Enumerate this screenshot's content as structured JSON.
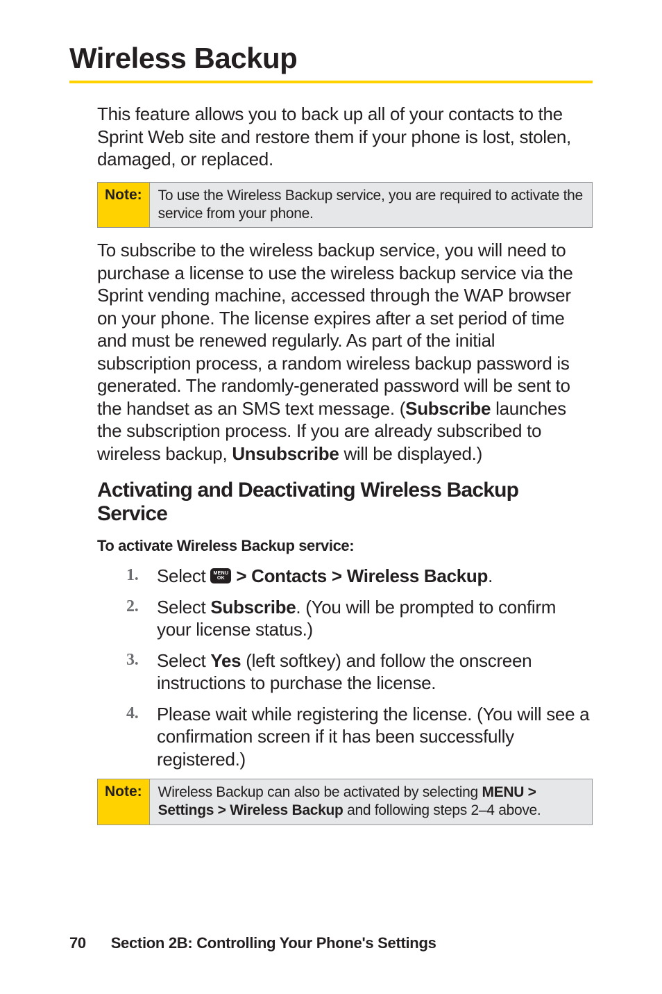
{
  "title": "Wireless Backup",
  "intro": "This feature allows you to back up all of your contacts to the Sprint Web site and restore them if your phone is lost, stolen, damaged, or replaced.",
  "note1": {
    "label": "Note:",
    "text": "To use the Wireless Backup service, you are required to activate the service from your phone."
  },
  "para2_parts": {
    "a": "To subscribe to the wireless backup service, you will need to purchase a license to use the wireless backup service via the Sprint vending machine, accessed through the WAP browser on your phone. The license expires after a set period of time and must be renewed regularly. As part of the initial subscription process, a random wireless backup password is generated. The randomly-generated password will be sent to the handset as an SMS text message. (",
    "b": "Subscribe",
    "c": " launches the subscription process. If you are already subscribed to wireless backup, ",
    "d": "Unsubscribe",
    "e": " will be displayed.)"
  },
  "h2": "Activating and Deactivating Wireless Backup Service",
  "sub": "To activate Wireless Backup service:",
  "steps": [
    {
      "pre": "Select ",
      "bold": " > Contacts > Wireless Backup",
      "post": "."
    },
    {
      "pre": "Select ",
      "bold": "Subscribe",
      "post": ". (You will be prompted to confirm your license status.)"
    },
    {
      "pre": "Select ",
      "bold": "Yes",
      "post": " (left softkey) and follow the onscreen instructions to purchase the license."
    },
    {
      "pre": "Please wait while registering the license. (You will see a confirmation screen if it has been successfully registered.)",
      "bold": "",
      "post": ""
    }
  ],
  "note2": {
    "label": "Note:",
    "a": "Wireless Backup can also be activated by selecting ",
    "b": "MENU > Settings > Wireless Backup",
    "c": " and following steps 2–4 above."
  },
  "footer": {
    "page": "70",
    "section": "Section 2B: Controlling Your Phone's Settings"
  },
  "colors": {
    "accent": "#ffd200",
    "rule": "#939598",
    "notebg": "#e6e7e8",
    "numcolor": "#6d6e71"
  }
}
